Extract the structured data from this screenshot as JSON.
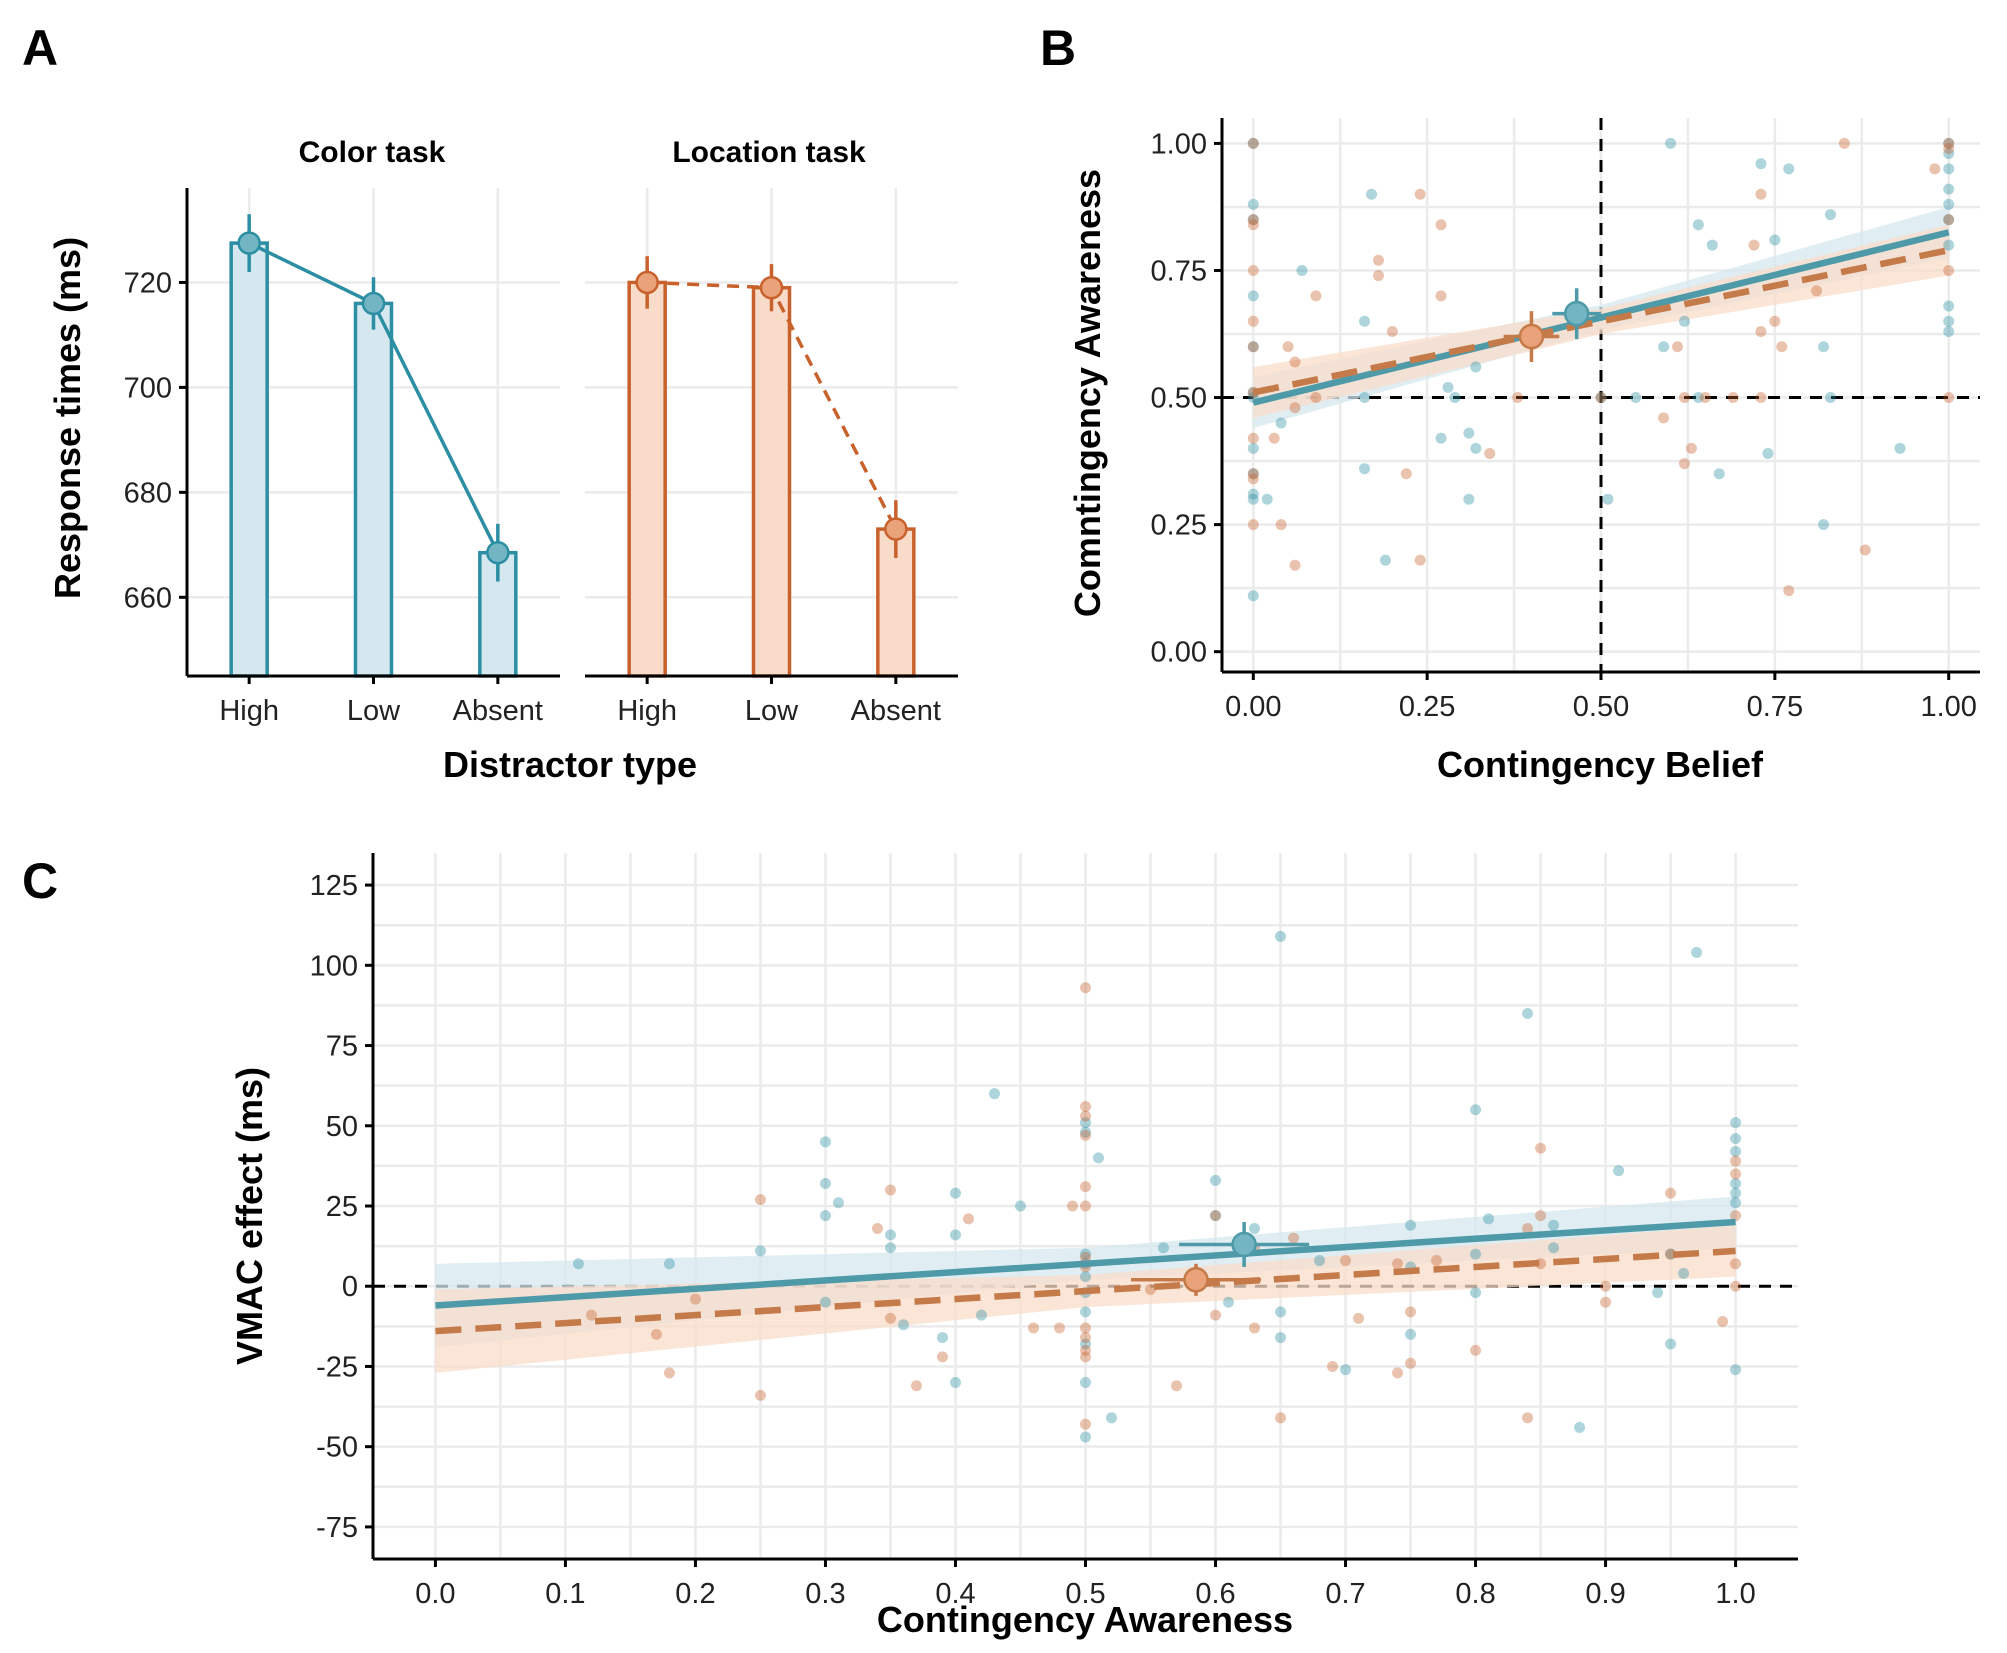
{
  "colors": {
    "color_task": "#2b8ea3",
    "color_task_fill": "#d6e8ef",
    "location_task": "#c8612c",
    "location_task_fill": "#f8dcc9",
    "teal_line": "#4e9aa8",
    "orange_line": "#c57a49"
  },
  "chart_data": [
    {
      "panel": "A",
      "type": "bar",
      "xlabel": "Distractor type",
      "ylabel": "Response times (ms)",
      "ylim": [
        645,
        738
      ],
      "yticks": [
        660,
        680,
        700,
        720
      ],
      "facets": [
        {
          "title": "Color task",
          "categories": [
            "High",
            "Low",
            "Absent"
          ],
          "values": [
            727.5,
            716,
            668.5
          ],
          "err": [
            5.5,
            5,
            5.5
          ],
          "line": "solid"
        },
        {
          "title": "Location task",
          "categories": [
            "High",
            "Low",
            "Absent"
          ],
          "values": [
            720,
            719,
            673
          ],
          "err": [
            5,
            4.5,
            5.5
          ],
          "line": "dashed"
        }
      ]
    },
    {
      "panel": "B",
      "type": "scatter",
      "xlabel": "Contingency Belief",
      "ylabel": "Comntingency Awareness",
      "xlim": [
        -0.045,
        1.045
      ],
      "ylim": [
        -0.04,
        1.05
      ],
      "xticks": [
        "0.00",
        "0.25",
        "0.50",
        "0.75",
        "1.00"
      ],
      "yticks": [
        "0.00",
        "0.25",
        "0.50",
        "0.75",
        "1.00"
      ],
      "ref_lines": {
        "x": 0.5,
        "y": 0.5
      },
      "series": [
        {
          "group": "color",
          "points": [
            [
              0,
              1
            ],
            [
              0,
              0.88
            ],
            [
              0,
              0.85
            ],
            [
              0,
              0.7
            ],
            [
              0,
              0.6
            ],
            [
              0,
              0.5
            ],
            [
              0,
              0.51
            ],
            [
              0,
              0.4
            ],
            [
              0,
              0.35
            ],
            [
              0,
              0.31
            ],
            [
              0,
              0.3
            ],
            [
              0,
              0.11
            ],
            [
              0.02,
              0.3
            ],
            [
              0.04,
              0.45
            ],
            [
              0.07,
              0.75
            ],
            [
              0.16,
              0.65
            ],
            [
              0.16,
              0.5
            ],
            [
              0.16,
              0.36
            ],
            [
              0.17,
              0.9
            ],
            [
              0.19,
              0.18
            ],
            [
              0.28,
              0.52
            ],
            [
              0.29,
              0.5
            ],
            [
              0.27,
              0.42
            ],
            [
              0.31,
              0.43
            ],
            [
              0.31,
              0.3
            ],
            [
              0.32,
              0.4
            ],
            [
              0.32,
              0.56
            ],
            [
              0.5,
              0.5
            ],
            [
              0.51,
              0.3
            ],
            [
              0.55,
              0.5
            ],
            [
              0.6,
              1
            ],
            [
              0.59,
              0.6
            ],
            [
              0.62,
              0.65
            ],
            [
              0.64,
              0.84
            ],
            [
              0.64,
              0.5
            ],
            [
              0.66,
              0.8
            ],
            [
              0.67,
              0.35
            ],
            [
              0.73,
              0.96
            ],
            [
              0.74,
              0.39
            ],
            [
              0.75,
              0.81
            ],
            [
              0.77,
              0.95
            ],
            [
              0.82,
              0.6
            ],
            [
              0.82,
              0.25
            ],
            [
              0.83,
              0.86
            ],
            [
              0.83,
              0.5
            ],
            [
              0.93,
              0.4
            ],
            [
              1,
              1
            ],
            [
              1,
              0.98
            ],
            [
              1,
              0.95
            ],
            [
              1,
              0.91
            ],
            [
              1,
              0.88
            ],
            [
              1,
              0.85
            ],
            [
              1,
              0.8
            ],
            [
              1,
              0.68
            ],
            [
              1,
              0.65
            ],
            [
              1,
              0.63
            ]
          ],
          "fit": {
            "x": [
              0,
              1
            ],
            "y": [
              0.49,
              0.825
            ]
          },
          "mean": {
            "x": 0.465,
            "y": 0.665,
            "xerr": 0.035,
            "yerr": 0.05
          }
        },
        {
          "group": "location",
          "points": [
            [
              0,
              1
            ],
            [
              0,
              0.85
            ],
            [
              0,
              0.84
            ],
            [
              0,
              0.75
            ],
            [
              0,
              0.65
            ],
            [
              0,
              0.6
            ],
            [
              0,
              0.51
            ],
            [
              0,
              0.42
            ],
            [
              0,
              0.35
            ],
            [
              0,
              0.34
            ],
            [
              0,
              0.25
            ],
            [
              0.03,
              0.42
            ],
            [
              0.04,
              0.25
            ],
            [
              0.05,
              0.6
            ],
            [
              0.06,
              0.57
            ],
            [
              0.06,
              0.48
            ],
            [
              0.06,
              0.17
            ],
            [
              0.09,
              0.7
            ],
            [
              0.09,
              0.5
            ],
            [
              0.18,
              0.74
            ],
            [
              0.18,
              0.77
            ],
            [
              0.2,
              0.63
            ],
            [
              0.22,
              0.35
            ],
            [
              0.24,
              0.18
            ],
            [
              0.24,
              0.9
            ],
            [
              0.27,
              0.84
            ],
            [
              0.27,
              0.7
            ],
            [
              0.34,
              0.39
            ],
            [
              0.38,
              0.5
            ],
            [
              0.5,
              0.5
            ],
            [
              0.59,
              0.46
            ],
            [
              0.61,
              0.6
            ],
            [
              0.62,
              0.5
            ],
            [
              0.62,
              0.37
            ],
            [
              0.63,
              0.4
            ],
            [
              0.65,
              0.5
            ],
            [
              0.69,
              0.5
            ],
            [
              0.72,
              0.8
            ],
            [
              0.73,
              0.9
            ],
            [
              0.73,
              0.63
            ],
            [
              0.73,
              0.5
            ],
            [
              0.75,
              0.65
            ],
            [
              0.76,
              0.6
            ],
            [
              0.77,
              0.12
            ],
            [
              0.81,
              0.71
            ],
            [
              0.85,
              1
            ],
            [
              0.88,
              0.2
            ],
            [
              0.98,
              0.95
            ],
            [
              1,
              1
            ],
            [
              1,
              0.99
            ],
            [
              1,
              0.85
            ],
            [
              1,
              0.75
            ],
            [
              1,
              0.5
            ]
          ],
          "fit": {
            "x": [
              0,
              1
            ],
            "y": [
              0.51,
              0.79
            ]
          },
          "mean": {
            "x": 0.4,
            "y": 0.62,
            "xerr": 0.04,
            "yerr": 0.05
          }
        }
      ]
    },
    {
      "panel": "C",
      "type": "scatter",
      "xlabel": "Contingency Awareness",
      "ylabel": "VMAC effect (ms)",
      "xlim": [
        -0.048,
        1.048
      ],
      "ylim": [
        -85,
        135
      ],
      "xticks": [
        "0.0",
        "0.1",
        "0.2",
        "0.3",
        "0.4",
        "0.5",
        "0.6",
        "0.7",
        "0.8",
        "0.9",
        "1.0"
      ],
      "yticks": [
        "125",
        "100",
        "75",
        "50",
        "25",
        "0",
        "-25",
        "-50",
        "-75"
      ],
      "ref_lines": {
        "y": 0
      },
      "series": [
        {
          "group": "color",
          "points": [
            [
              0.11,
              7
            ],
            [
              0.18,
              7
            ],
            [
              0.25,
              11
            ],
            [
              0.3,
              45
            ],
            [
              0.3,
              32
            ],
            [
              0.3,
              22
            ],
            [
              0.3,
              -5
            ],
            [
              0.31,
              26
            ],
            [
              0.35,
              12
            ],
            [
              0.35,
              16
            ],
            [
              0.36,
              -12
            ],
            [
              0.4,
              29
            ],
            [
              0.4,
              16
            ],
            [
              0.39,
              -16
            ],
            [
              0.4,
              -30
            ],
            [
              0.42,
              -9
            ],
            [
              0.43,
              60
            ],
            [
              0.45,
              25
            ],
            [
              0.5,
              51
            ],
            [
              0.5,
              48
            ],
            [
              0.5,
              10
            ],
            [
              0.5,
              7
            ],
            [
              0.5,
              3
            ],
            [
              0.5,
              -2
            ],
            [
              0.5,
              -8
            ],
            [
              0.5,
              -18
            ],
            [
              0.5,
              -30
            ],
            [
              0.5,
              -47
            ],
            [
              0.51,
              40
            ],
            [
              0.52,
              -41
            ],
            [
              0.56,
              12
            ],
            [
              0.6,
              33
            ],
            [
              0.6,
              22
            ],
            [
              0.61,
              -5
            ],
            [
              0.63,
              18
            ],
            [
              0.65,
              109
            ],
            [
              0.65,
              -8
            ],
            [
              0.65,
              -16
            ],
            [
              0.68,
              8
            ],
            [
              0.7,
              -26
            ],
            [
              0.75,
              19
            ],
            [
              0.75,
              6
            ],
            [
              0.75,
              -15
            ],
            [
              0.8,
              55
            ],
            [
              0.8,
              10
            ],
            [
              0.8,
              -2
            ],
            [
              0.81,
              21
            ],
            [
              0.84,
              85
            ],
            [
              0.86,
              19
            ],
            [
              0.86,
              12
            ],
            [
              0.88,
              -44
            ],
            [
              0.91,
              36
            ],
            [
              0.94,
              -2
            ],
            [
              0.95,
              10
            ],
            [
              0.95,
              -18
            ],
            [
              0.96,
              4
            ],
            [
              0.97,
              104
            ],
            [
              1,
              51
            ],
            [
              1,
              46
            ],
            [
              1,
              42
            ],
            [
              1,
              32
            ],
            [
              1,
              29
            ],
            [
              1,
              26
            ],
            [
              1,
              -26
            ]
          ],
          "fit": {
            "x": [
              0,
              1
            ],
            "y": [
              -6,
              20
            ]
          },
          "mean": {
            "x": 0.622,
            "y": 13,
            "xerr": 0.05,
            "yerr": 7
          }
        },
        {
          "group": "location",
          "points": [
            [
              0.12,
              -9
            ],
            [
              0.2,
              -4
            ],
            [
              0.17,
              -15
            ],
            [
              0.18,
              -27
            ],
            [
              0.25,
              27
            ],
            [
              0.25,
              -34
            ],
            [
              0.34,
              18
            ],
            [
              0.35,
              30
            ],
            [
              0.35,
              -10
            ],
            [
              0.37,
              -31
            ],
            [
              0.39,
              -22
            ],
            [
              0.41,
              21
            ],
            [
              0.46,
              -13
            ],
            [
              0.48,
              -13
            ],
            [
              0.49,
              25
            ],
            [
              0.5,
              93
            ],
            [
              0.5,
              56
            ],
            [
              0.5,
              53
            ],
            [
              0.5,
              47
            ],
            [
              0.5,
              31
            ],
            [
              0.5,
              25
            ],
            [
              0.5,
              9
            ],
            [
              0.5,
              6
            ],
            [
              0.5,
              -13
            ],
            [
              0.5,
              -16
            ],
            [
              0.5,
              -20
            ],
            [
              0.5,
              -22
            ],
            [
              0.5,
              -43
            ],
            [
              0.55,
              -1
            ],
            [
              0.57,
              -31
            ],
            [
              0.6,
              22
            ],
            [
              0.6,
              -9
            ],
            [
              0.63,
              -13
            ],
            [
              0.63,
              12
            ],
            [
              0.65,
              -41
            ],
            [
              0.66,
              15
            ],
            [
              0.69,
              -25
            ],
            [
              0.7,
              8
            ],
            [
              0.71,
              -10
            ],
            [
              0.74,
              -27
            ],
            [
              0.74,
              7
            ],
            [
              0.75,
              -8
            ],
            [
              0.75,
              -24
            ],
            [
              0.77,
              8
            ],
            [
              0.8,
              -20
            ],
            [
              0.84,
              18
            ],
            [
              0.84,
              -41
            ],
            [
              0.85,
              43
            ],
            [
              0.85,
              22
            ],
            [
              0.85,
              7
            ],
            [
              0.9,
              0
            ],
            [
              0.9,
              -5
            ],
            [
              0.95,
              29
            ],
            [
              0.95,
              10
            ],
            [
              0.99,
              -11
            ],
            [
              1,
              39
            ],
            [
              1,
              35
            ],
            [
              1,
              22
            ],
            [
              1,
              7
            ],
            [
              1,
              0
            ]
          ],
          "fit": {
            "x": [
              0,
              1
            ],
            "y": [
              -14,
              11
            ]
          },
          "mean": {
            "x": 0.585,
            "y": 2,
            "xerr": 0.05,
            "yerr": 5
          }
        }
      ]
    }
  ]
}
